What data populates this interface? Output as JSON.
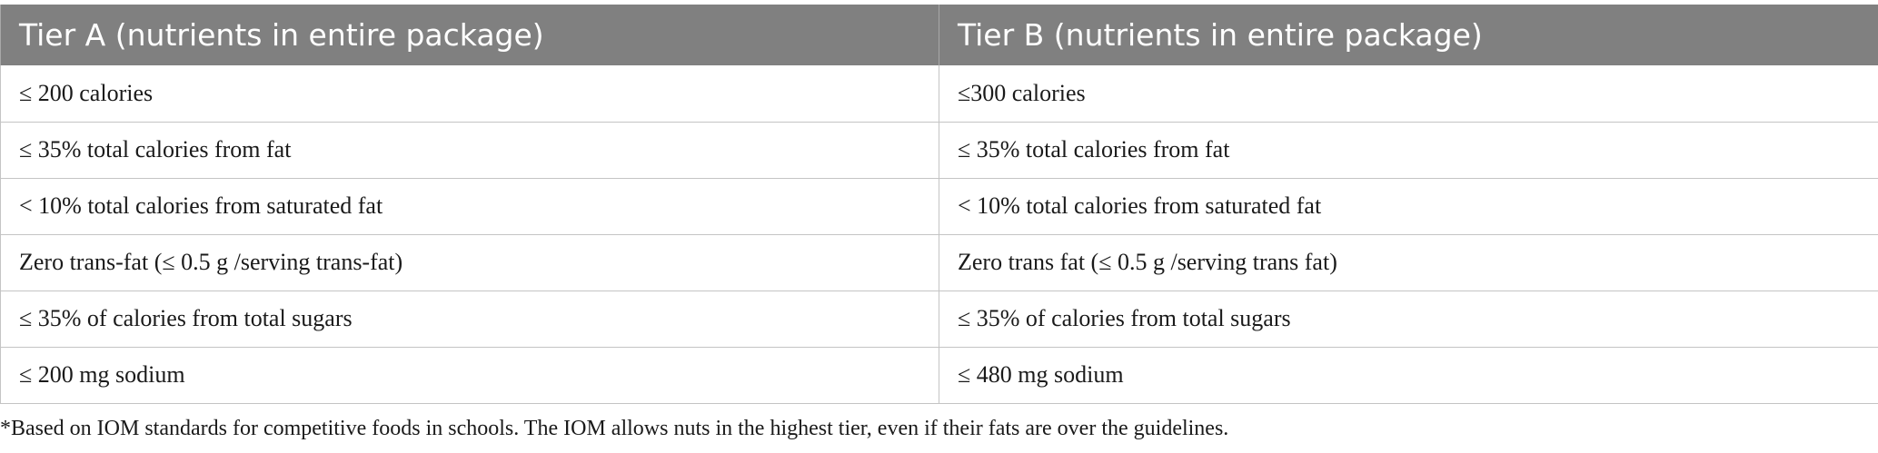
{
  "table": {
    "headers": [
      "Tier A (nutrients in entire package)",
      "Tier B (nutrients in entire package)"
    ],
    "rows": [
      [
        "≤ 200 calories",
        "≤300 calories"
      ],
      [
        "≤ 35% total calories from fat",
        "≤ 35% total calories from fat"
      ],
      [
        "< 10% total calories from saturated fat",
        "< 10% total calories from saturated fat"
      ],
      [
        "Zero trans-fat (≤ 0.5 g /serving trans-fat)",
        "Zero trans fat (≤ 0.5 g /serving trans fat)"
      ],
      [
        "≤ 35% of calories from total sugars",
        "≤ 35% of calories from total sugars"
      ],
      [
        "≤ 200 mg sodium",
        "≤ 480 mg sodium"
      ]
    ]
  },
  "footnote": "*Based on IOM standards for competitive foods in schools. The IOM allows nuts in the highest tier, even if their fats are over the guidelines.",
  "colors": {
    "header_bg": "#808080",
    "header_text": "#ffffff",
    "grid": "#c4c4c4"
  }
}
